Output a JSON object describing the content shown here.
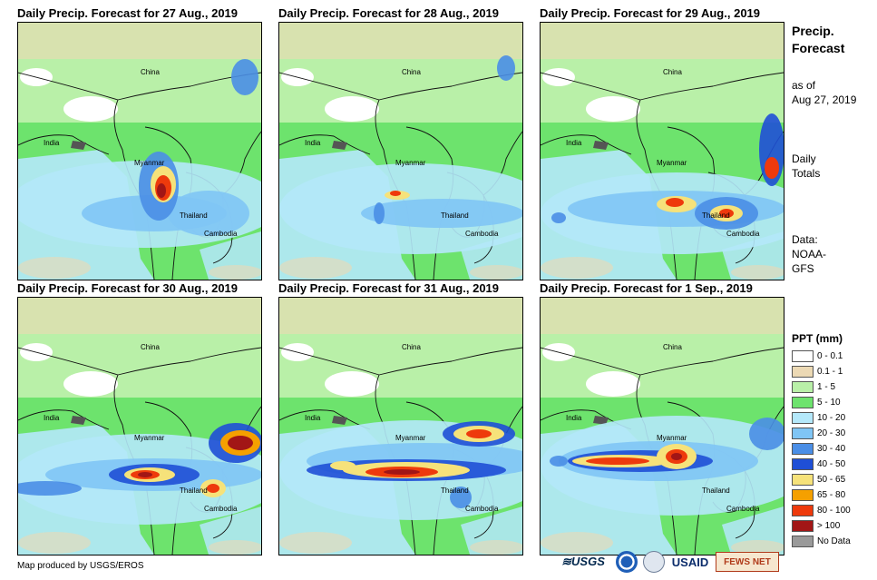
{
  "panels": [
    {
      "title": "Daily Precip. Forecast for 27 Aug., 2019",
      "labels": {
        "china": "China",
        "india": "India",
        "myanmar": "Myanmar",
        "thailand": "Thailand",
        "cambodia": "Cambodia"
      }
    },
    {
      "title": "Daily Precip. Forecast for 28 Aug., 2019",
      "labels": {
        "china": "China",
        "india": "India",
        "myanmar": "Myanmar",
        "thailand": "Thailand",
        "cambodia": "Cambodia"
      }
    },
    {
      "title": "Daily Precip. Forecast for 29 Aug., 2019",
      "labels": {
        "china": "China",
        "india": "India",
        "myanmar": "Myanmar",
        "thailand": "Thailand",
        "cambodia": "Cambodia"
      }
    },
    {
      "title": "Daily Precip. Forecast for 30 Aug., 2019",
      "labels": {
        "china": "China",
        "india": "India",
        "myanmar": "Myanmar",
        "thailand": "Thailand",
        "cambodia": "Cambodia"
      }
    },
    {
      "title": "Daily Precip. Forecast for 31 Aug., 2019",
      "labels": {
        "china": "China",
        "india": "India",
        "myanmar": "Myanmar",
        "thailand": "Thailand",
        "cambodia": "Cambodia"
      }
    },
    {
      "title": "Daily Precip. Forecast for 1 Sep., 2019",
      "labels": {
        "china": "China",
        "india": "India",
        "myanmar": "Myanmar",
        "thailand": "Thailand",
        "cambodia": "Cambodia"
      }
    }
  ],
  "sidebar": {
    "title_line1": "Precip.",
    "title_line2": "Forecast",
    "asof_line1": "as of",
    "asof_line2": "Aug 27, 2019",
    "daily_line1": "Daily",
    "daily_line2": "Totals",
    "data_line1": "Data:",
    "data_line2": "NOAA-",
    "data_line3": "GFS"
  },
  "legend": {
    "title": "PPT (mm)",
    "items": [
      {
        "label": "0 - 0.1",
        "color": "#ffffff"
      },
      {
        "label": "0.1 - 1",
        "color": "#ecd9b4"
      },
      {
        "label": "1 - 5",
        "color": "#b9f0a8"
      },
      {
        "label": "5 - 10",
        "color": "#6de36d"
      },
      {
        "label": "10 - 20",
        "color": "#b4e8fa"
      },
      {
        "label": "20 - 30",
        "color": "#7fc5f5"
      },
      {
        "label": "30 - 40",
        "color": "#4a8ee6"
      },
      {
        "label": "40 - 50",
        "color": "#1f4fd6"
      },
      {
        "label": "50 - 65",
        "color": "#f6e27a"
      },
      {
        "label": "65 - 80",
        "color": "#f5a000"
      },
      {
        "label": "80 - 100",
        "color": "#ee3a0c"
      },
      {
        "label": "> 100",
        "color": "#a21616"
      },
      {
        "label": "No Data",
        "color": "#9a9a9a"
      }
    ]
  },
  "footer": {
    "credit": "Map produced by USGS/EROS",
    "logos": {
      "usgs": "≋USGS",
      "usaid": "USAID",
      "fews": "FEWS NET"
    }
  }
}
